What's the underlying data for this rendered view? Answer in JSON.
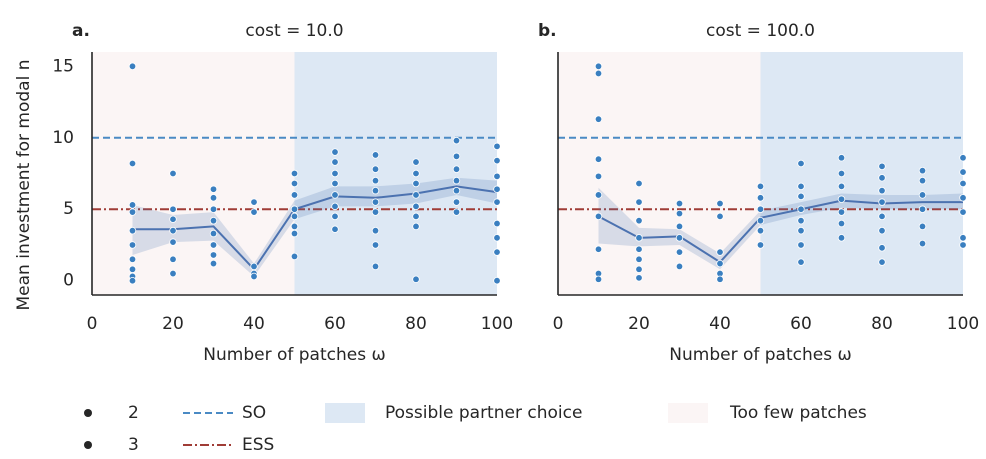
{
  "chart_data": [
    {
      "type": "scatter",
      "panel_label": "a.",
      "title": "cost = 10.0",
      "xlabel": "Number of patches ω",
      "ylabel": "Mean investment for modal n",
      "xlim": [
        0,
        100
      ],
      "ylim": [
        -1,
        16
      ],
      "xticks": [
        0,
        20,
        40,
        60,
        80,
        100
      ],
      "yticks": [
        0,
        5,
        10,
        15
      ],
      "regions": [
        {
          "name": "Too few patches",
          "xlim": [
            0,
            50
          ],
          "color": "#fbf5f5"
        },
        {
          "name": "Possible partner choice",
          "xlim": [
            50,
            100
          ],
          "color": "#dde8f4"
        }
      ],
      "hlines": [
        {
          "name": "SO",
          "y": 10,
          "color": "#4a8ac4",
          "style": "dashed"
        },
        {
          "name": "ESS",
          "y": 5,
          "color": "#a03c36",
          "style": "dashdot"
        }
      ],
      "size_legend": [
        2,
        3
      ],
      "point_color": "#3a7fc0",
      "x": [
        10,
        20,
        30,
        40,
        50,
        60,
        70,
        80,
        90,
        100
      ],
      "mean": [
        3.6,
        3.6,
        3.8,
        0.8,
        5.0,
        5.9,
        5.8,
        6.1,
        6.6,
        6.2
      ],
      "lower": [
        1.8,
        2.7,
        2.8,
        0.3,
        4.3,
        5.2,
        5.2,
        5.4,
        6.0,
        5.4
      ],
      "upper": [
        5.3,
        4.6,
        4.8,
        1.2,
        5.6,
        6.6,
        6.6,
        6.8,
        7.2,
        7.0
      ],
      "line_color": "#4c72b0",
      "points_y": [
        [
          15,
          8.2,
          5.3,
          4.8,
          3.5,
          2.5,
          1.5,
          0.8,
          0.3,
          0
        ],
        [
          7.5,
          5.0,
          4.3,
          3.5,
          2.7,
          1.5,
          0.5
        ],
        [
          6.4,
          5.8,
          5.0,
          4.2,
          3.3,
          2.5,
          1.8,
          1.2
        ],
        [
          5.5,
          4.8,
          1.0,
          0.5,
          0.3
        ],
        [
          7.5,
          6.8,
          6.0,
          5.0,
          4.5,
          3.8,
          3.3,
          1.7
        ],
        [
          9.0,
          8.3,
          7.5,
          6.8,
          6.0,
          5.2,
          4.5,
          3.6
        ],
        [
          8.8,
          7.8,
          7.0,
          6.3,
          5.5,
          4.8,
          3.5,
          2.5,
          1.0
        ],
        [
          8.3,
          7.5,
          6.8,
          6.0,
          5.2,
          4.5,
          3.8,
          0.1
        ],
        [
          9.8,
          8.7,
          7.8,
          7.0,
          6.3,
          5.5,
          4.8
        ],
        [
          9.4,
          8.4,
          7.3,
          6.4,
          5.5,
          4.0,
          3.0,
          2.0,
          0
        ]
      ]
    },
    {
      "type": "scatter",
      "panel_label": "b.",
      "title": "cost = 100.0",
      "xlabel": "Number of patches ω",
      "xlim": [
        0,
        100
      ],
      "ylim": [
        -1,
        16
      ],
      "xticks": [
        0,
        20,
        40,
        60,
        80,
        100
      ],
      "regions": [
        {
          "xlim": [
            0,
            50
          ],
          "color": "#fbf5f5"
        },
        {
          "xlim": [
            50,
            100
          ],
          "color": "#dde8f4"
        }
      ],
      "hlines": [
        {
          "y": 10,
          "color": "#4a8ac4",
          "style": "dashed"
        },
        {
          "y": 5,
          "color": "#a03c36",
          "style": "dashdot"
        }
      ],
      "point_color": "#3a7fc0",
      "x": [
        10,
        20,
        30,
        40,
        50,
        60,
        70,
        80,
        90,
        100
      ],
      "mean": [
        4.5,
        3.0,
        3.1,
        1.3,
        4.4,
        5.0,
        5.6,
        5.4,
        5.5,
        5.5
      ],
      "lower": [
        2.6,
        2.4,
        2.5,
        0.8,
        3.9,
        4.6,
        5.1,
        5.0,
        5.0,
        5.0
      ],
      "upper": [
        6.5,
        3.7,
        3.6,
        1.9,
        4.9,
        5.5,
        6.1,
        6.0,
        6.0,
        6.1
      ],
      "line_color": "#4c72b0",
      "points_y": [
        [
          15,
          14.5,
          11.3,
          8.5,
          7.3,
          6.0,
          4.5,
          2.2,
          0.5,
          0.1
        ],
        [
          6.8,
          5.5,
          4.2,
          3.0,
          2.2,
          1.5,
          0.8,
          0.2
        ],
        [
          5.4,
          4.7,
          3.8,
          3.0,
          2.0,
          1.0
        ],
        [
          5.4,
          4.5,
          2.0,
          1.2,
          0.5,
          0.1
        ],
        [
          6.6,
          5.8,
          5.0,
          4.2,
          3.5,
          2.5
        ],
        [
          8.2,
          6.6,
          5.9,
          5.0,
          4.2,
          3.5,
          2.5,
          1.3
        ],
        [
          8.6,
          7.5,
          6.6,
          5.7,
          4.8,
          4.0,
          3.0
        ],
        [
          8.0,
          7.2,
          6.3,
          5.5,
          4.5,
          3.5,
          2.3,
          1.3
        ],
        [
          7.7,
          7.0,
          6.0,
          5.0,
          3.8,
          2.6
        ],
        [
          8.6,
          7.6,
          6.8,
          5.8,
          4.8,
          3.0,
          2.5
        ]
      ]
    }
  ]
}
